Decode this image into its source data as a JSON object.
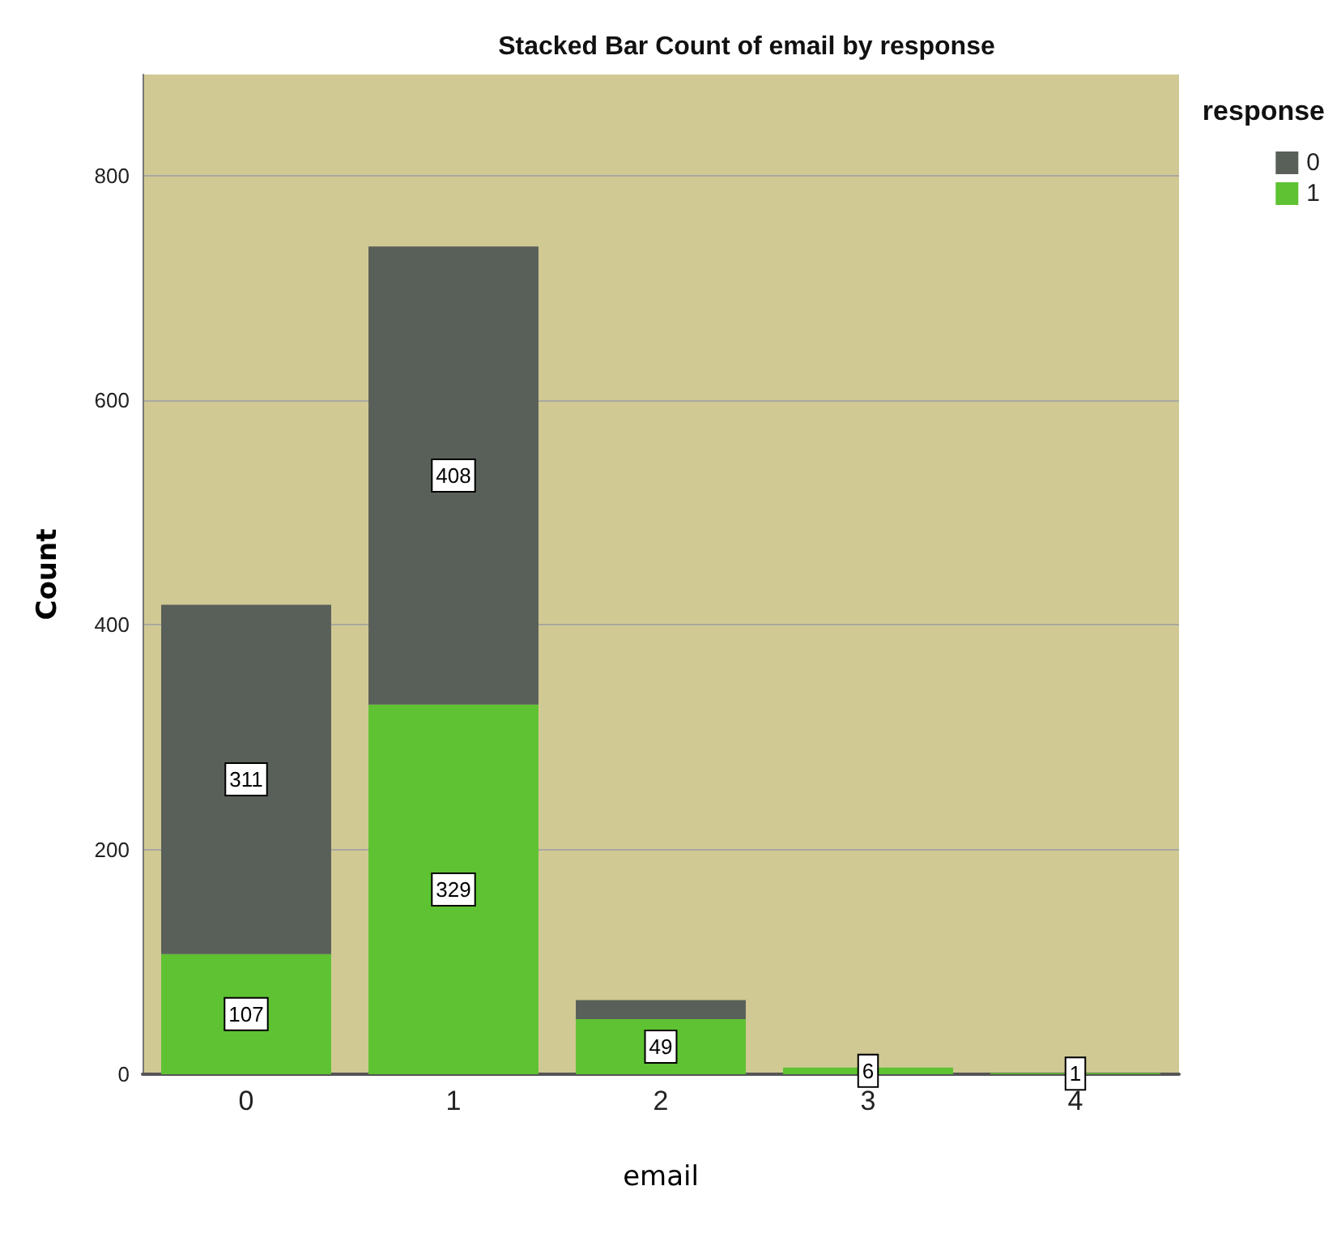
{
  "chart_data": {
    "type": "bar",
    "title": "Stacked Bar Count of email by response",
    "xlabel": "email",
    "ylabel": "Count",
    "legend_title": "response",
    "categories": [
      "0",
      "1",
      "2",
      "3",
      "4"
    ],
    "stacked": true,
    "series": [
      {
        "name": "1",
        "color": "#5ec232",
        "values": [
          107,
          329,
          49,
          6,
          1
        ],
        "value_labels": [
          "107",
          "329",
          "49",
          "6",
          "1"
        ]
      },
      {
        "name": "0",
        "color": "#596059",
        "values": [
          311,
          408,
          17,
          null,
          null
        ],
        "value_labels": [
          "311",
          "408",
          null,
          null,
          null
        ]
      }
    ],
    "ylim": [
      0,
      890
    ],
    "yticks": [
      0,
      200,
      400,
      600,
      800
    ],
    "grid": "y",
    "legend": "top right"
  }
}
